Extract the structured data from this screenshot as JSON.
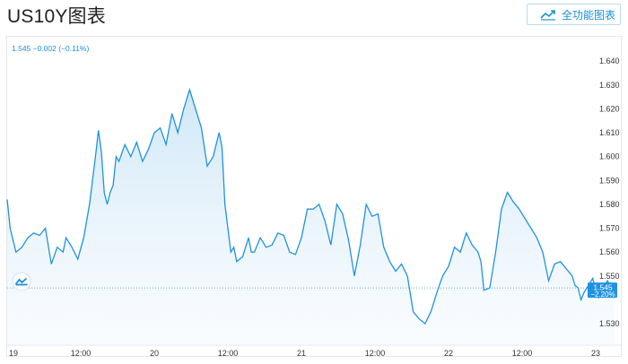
{
  "header": {
    "title": "US10Y图表",
    "full_chart_label": "全功能图表",
    "full_chart_icon": "line-chart-icon"
  },
  "legend_readout": "1.545 −0.002 (−0.11%)",
  "price_tag": {
    "value": "1.545",
    "change": "−2.20%"
  },
  "colors": {
    "line": "#1f93e0",
    "fill_top": "#cde6f7",
    "tag": "#1f93e0",
    "accent": "#1a90d9"
  },
  "chart_data": {
    "type": "area",
    "title": "",
    "ylabel": "",
    "ylim": [
      1.521,
      1.644
    ],
    "y_ticks": [
      "1.640",
      "1.630",
      "1.620",
      "1.610",
      "1.600",
      "1.590",
      "1.580",
      "1.570",
      "1.560",
      "1.550",
      "1.530"
    ],
    "x_ticks": [
      "19",
      "12:00",
      "20",
      "12:00",
      "21",
      "12:00",
      "22",
      "12:00",
      "23"
    ],
    "x_range": [
      0,
      4.13
    ],
    "grid": false,
    "series": [
      {
        "x": [
          0,
          0.02,
          0.06,
          0.1,
          0.14,
          0.18,
          0.22,
          0.26,
          0.3,
          0.34,
          0.38,
          0.4,
          0.44,
          0.48,
          0.52,
          0.56,
          0.6,
          0.62,
          0.64,
          0.66,
          0.68,
          0.7,
          0.72,
          0.74,
          0.76,
          0.8,
          0.84,
          0.88,
          0.92,
          0.96,
          1.0,
          1.04,
          1.08,
          1.12,
          1.16,
          1.2,
          1.24,
          1.28,
          1.32,
          1.36,
          1.4,
          1.44,
          1.46,
          1.48,
          1.5,
          1.52,
          1.54,
          1.56,
          1.6,
          1.64,
          1.66,
          1.68,
          1.72,
          1.76,
          1.8,
          1.84,
          1.88,
          1.92,
          1.96,
          2.0,
          2.04,
          2.08,
          2.12,
          2.16,
          2.2,
          2.24,
          2.28,
          2.32,
          2.36,
          2.4,
          2.44,
          2.48,
          2.52,
          2.56,
          2.6,
          2.64,
          2.68,
          2.72,
          2.76,
          2.8,
          2.84,
          2.88,
          2.92,
          2.96,
          3.0,
          3.04,
          3.08,
          3.12,
          3.16,
          3.2,
          3.22,
          3.24,
          3.28,
          3.32,
          3.36,
          3.4,
          3.44,
          3.48,
          3.52,
          3.56,
          3.6,
          3.64,
          3.68,
          3.72,
          3.76,
          3.8,
          3.84,
          3.86,
          3.88,
          3.9,
          3.92,
          3.94,
          3.96,
          3.98,
          4.0,
          4.02,
          4.05,
          4.08,
          4.1,
          4.13
        ],
        "y": [
          1.582,
          1.57,
          1.56,
          1.562,
          1.566,
          1.568,
          1.567,
          1.57,
          1.555,
          1.562,
          1.56,
          1.566,
          1.562,
          1.557,
          1.566,
          1.58,
          1.6,
          1.611,
          1.602,
          1.585,
          1.58,
          1.585,
          1.588,
          1.6,
          1.598,
          1.605,
          1.6,
          1.606,
          1.598,
          1.603,
          1.61,
          1.612,
          1.605,
          1.618,
          1.61,
          1.62,
          1.628,
          1.62,
          1.612,
          1.596,
          1.6,
          1.61,
          1.604,
          1.58,
          1.57,
          1.56,
          1.562,
          1.556,
          1.558,
          1.566,
          1.56,
          1.56,
          1.566,
          1.562,
          1.563,
          1.568,
          1.567,
          1.56,
          1.559,
          1.566,
          1.578,
          1.578,
          1.58,
          1.573,
          1.563,
          1.58,
          1.576,
          1.565,
          1.55,
          1.563,
          1.58,
          1.575,
          1.576,
          1.562,
          1.556,
          1.552,
          1.555,
          1.55,
          1.535,
          1.532,
          1.53,
          1.535,
          1.543,
          1.55,
          1.554,
          1.562,
          1.56,
          1.568,
          1.563,
          1.56,
          1.556,
          1.544,
          1.545,
          1.56,
          1.578,
          1.585,
          1.581,
          1.578,
          1.574,
          1.57,
          1.566,
          1.56,
          1.548,
          1.555,
          1.556,
          1.553,
          1.55,
          1.546,
          1.545,
          1.54,
          1.543,
          1.545,
          1.547,
          1.549,
          1.544,
          1.541,
          1.545,
          1.548,
          1.546,
          1.545
        ]
      }
    ]
  }
}
